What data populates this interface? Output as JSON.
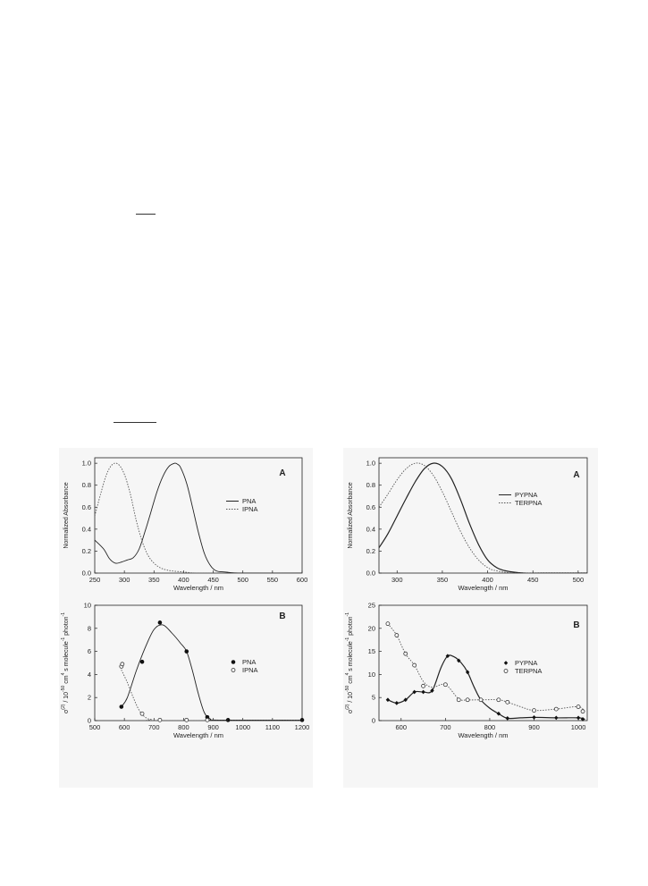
{
  "chart_data": [
    {
      "type": "line",
      "panel_label": "A",
      "xlabel": "Wavelength / nm",
      "ylabel": "Normalized Absorbance",
      "xlim": [
        250,
        600
      ],
      "ylim": [
        0.0,
        1.05
      ],
      "xticks": [
        250,
        300,
        350,
        400,
        450,
        500,
        550,
        600
      ],
      "yticks": [
        "0.0",
        "0.2",
        "0.4",
        "0.6",
        "0.8",
        "1.0"
      ],
      "legend_position": "right",
      "series": [
        {
          "name": "PNA",
          "style": "solid",
          "x": [
            250,
            265,
            275,
            285,
            295,
            305,
            315,
            325,
            335,
            345,
            355,
            365,
            375,
            385,
            390,
            395,
            405,
            415,
            425,
            435,
            445,
            455,
            470,
            500,
            600
          ],
          "y": [
            0.3,
            0.22,
            0.13,
            0.09,
            0.1,
            0.12,
            0.14,
            0.22,
            0.38,
            0.56,
            0.74,
            0.88,
            0.97,
            1.0,
            0.99,
            0.96,
            0.82,
            0.6,
            0.37,
            0.18,
            0.07,
            0.02,
            0.01,
            0.0,
            0.0
          ]
        },
        {
          "name": "IPNA",
          "style": "dotted",
          "x": [
            250,
            260,
            270,
            280,
            290,
            300,
            310,
            320,
            330,
            340,
            350,
            360,
            370,
            380,
            400,
            420,
            450
          ],
          "y": [
            0.52,
            0.72,
            0.9,
            0.99,
            0.99,
            0.9,
            0.72,
            0.48,
            0.29,
            0.16,
            0.09,
            0.05,
            0.03,
            0.02,
            0.01,
            0.0,
            0.0
          ]
        }
      ]
    },
    {
      "type": "line",
      "panel_label": "A",
      "xlabel": "Wavelength / nm",
      "ylabel": "Normalized Absorbance",
      "xlim": [
        280,
        510
      ],
      "ylim": [
        0.0,
        1.05
      ],
      "xticks": [
        300,
        350,
        400,
        450,
        500
      ],
      "yticks": [
        "0.0",
        "0.2",
        "0.4",
        "0.6",
        "0.8",
        "1.0"
      ],
      "legend_position": "right",
      "series": [
        {
          "name": "PYPNA",
          "style": "solid",
          "x": [
            280,
            290,
            300,
            310,
            320,
            330,
            340,
            350,
            360,
            370,
            380,
            390,
            400,
            410,
            420,
            440,
            460,
            510
          ],
          "y": [
            0.23,
            0.36,
            0.52,
            0.68,
            0.83,
            0.95,
            1.0,
            0.97,
            0.86,
            0.67,
            0.45,
            0.26,
            0.12,
            0.05,
            0.02,
            0.0,
            0.0,
            0.0
          ]
        },
        {
          "name": "TERPNA",
          "style": "dotted",
          "x": [
            280,
            290,
            300,
            310,
            320,
            330,
            340,
            350,
            360,
            370,
            380,
            390,
            400,
            410,
            430,
            460,
            510
          ],
          "y": [
            0.6,
            0.72,
            0.85,
            0.95,
            1.0,
            0.98,
            0.89,
            0.74,
            0.56,
            0.38,
            0.23,
            0.12,
            0.05,
            0.02,
            0.0,
            0.0,
            0.0
          ]
        }
      ]
    },
    {
      "type": "line",
      "panel_label": "B",
      "xlabel": "Wavelength / nm",
      "ylabel": "σ(2) / 10-50 cm4 s molecule-1 photon-1",
      "xlim": [
        500,
        1200
      ],
      "ylim": [
        0,
        10
      ],
      "xticks": [
        500,
        600,
        700,
        800,
        900,
        1000,
        1100,
        1200
      ],
      "yticks": [
        "0",
        "2",
        "4",
        "6",
        "8",
        "10"
      ],
      "legend_position": "right",
      "series": [
        {
          "name": "PNA",
          "style": "solid",
          "marker": "filled-circle",
          "x": [
            590,
            660,
            720,
            810,
            880,
            950,
            1200
          ],
          "y": [
            1.2,
            5.1,
            8.5,
            6.0,
            0.3,
            0.05,
            0.05
          ],
          "curve_x": [
            590,
            610,
            640,
            670,
            700,
            730,
            760,
            790,
            810,
            830,
            850,
            870,
            890,
            920,
            1200
          ],
          "curve_y": [
            1.2,
            2.0,
            4.3,
            6.3,
            7.9,
            8.3,
            7.6,
            6.7,
            6.0,
            4.3,
            2.3,
            0.7,
            0.15,
            0.05,
            0.05
          ]
        },
        {
          "name": "IPNA",
          "style": "dotted",
          "marker": "open-circle",
          "x": [
            590,
            593,
            660,
            720,
            810,
            880
          ],
          "y": [
            4.7,
            4.9,
            0.6,
            0.05,
            0.05,
            0.05
          ],
          "curve_x": [
            590,
            610,
            630,
            650,
            670,
            690,
            720,
            1200
          ],
          "curve_y": [
            4.4,
            3.3,
            2.0,
            0.9,
            0.3,
            0.1,
            0.0,
            0.0
          ]
        }
      ]
    },
    {
      "type": "line",
      "panel_label": "B",
      "xlabel": "Wavelength / nm",
      "ylabel": "σ(2) / 10-50 cm4 s molecule-1 photon-1",
      "xlim": [
        550,
        1020
      ],
      "ylim": [
        0,
        25
      ],
      "xticks": [
        600,
        700,
        800,
        900,
        1000
      ],
      "yticks": [
        "0",
        "5",
        "10",
        "15",
        "20",
        "25"
      ],
      "legend_position": "right",
      "series": [
        {
          "name": "PYPNA",
          "style": "solid",
          "marker": "filled-diamond",
          "x": [
            570,
            590,
            610,
            630,
            650,
            670,
            705,
            730,
            750,
            780,
            820,
            840,
            900,
            950,
            1000,
            1010
          ],
          "y": [
            4.5,
            3.8,
            4.5,
            6.2,
            6.2,
            6.5,
            14.0,
            13.0,
            10.5,
            4.5,
            1.5,
            0.5,
            0.7,
            0.6,
            0.6,
            0.3
          ],
          "curve_x": [
            570,
            590,
            610,
            630,
            650,
            670,
            690,
            705,
            720,
            735,
            750,
            765,
            780,
            800,
            820,
            840,
            870,
            900,
            950,
            1000,
            1015
          ],
          "curve_y": [
            4.5,
            3.8,
            4.5,
            6.2,
            6.2,
            6.5,
            11.5,
            14.0,
            13.8,
            12.6,
            10.5,
            7.2,
            4.5,
            2.7,
            1.5,
            0.5,
            0.6,
            0.7,
            0.6,
            0.6,
            0.3
          ]
        },
        {
          "name": "TERPNA",
          "style": "dotted",
          "marker": "open-circle",
          "x": [
            570,
            590,
            610,
            630,
            650,
            700,
            730,
            750,
            780,
            820,
            840,
            900,
            950,
            1000,
            1010
          ],
          "y": [
            21.0,
            18.5,
            14.5,
            12.0,
            7.5,
            7.8,
            4.5,
            4.5,
            4.5,
            4.5,
            4.0,
            2.2,
            2.5,
            3.0,
            2.0
          ],
          "curve_x": [
            570,
            590,
            610,
            630,
            650,
            670,
            700,
            730,
            750,
            780,
            820,
            840,
            870,
            900,
            950,
            1000,
            1015
          ],
          "curve_y": [
            21.0,
            18.5,
            14.5,
            12.0,
            8.5,
            7.2,
            7.8,
            4.7,
            4.5,
            4.5,
            4.5,
            4.0,
            3.0,
            2.2,
            2.5,
            3.0,
            1.8
          ]
        }
      ]
    }
  ]
}
